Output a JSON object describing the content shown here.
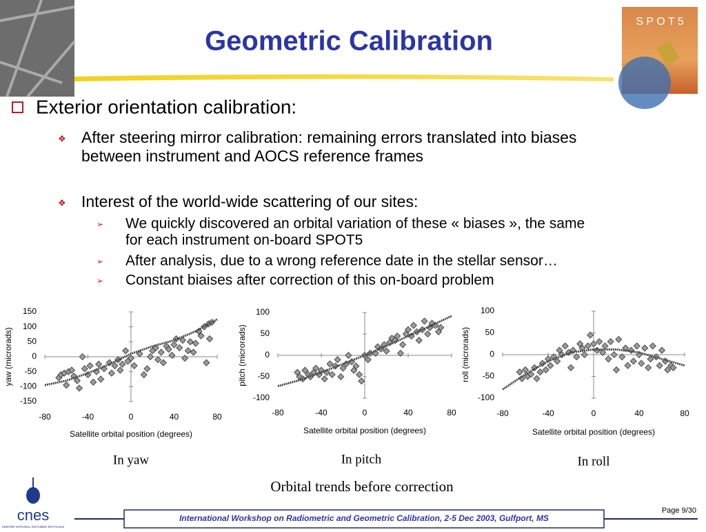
{
  "header": {
    "title": "Geometric Calibration",
    "logo_text": "S P O T 5"
  },
  "content": {
    "heading": "Exterior orientation calibration:",
    "items": [
      {
        "text": [
          "After steering mirror calibration: remaining errors translated into biases",
          "between instrument and AOCS reference frames"
        ]
      },
      {
        "text": [
          "Interest of the world-wide scattering of our sites:"
        ],
        "sub": [
          [
            "We quickly discovered an orbital variation of these « biases », the same",
            "for each instrument on-board SPOT5"
          ],
          [
            "After analysis, due to a wrong reference date in the stellar sensor…"
          ],
          [
            "Constant biaises after correction of this on-board problem"
          ]
        ]
      }
    ]
  },
  "chart_data": [
    {
      "type": "scatter",
      "y_label": "yaw (microrads)",
      "x_label": "Satellite orbital position (degrees)",
      "caption": "In yaw",
      "xlim": [
        -80,
        80
      ],
      "xticks": [
        -80,
        -40,
        0,
        40,
        80
      ],
      "ylim": [
        -150,
        150
      ],
      "yticks": [
        -150,
        -100,
        -50,
        0,
        50,
        100,
        150
      ],
      "color": "#9a9a9a",
      "x": [
        -67,
        -65,
        -62,
        -60,
        -58,
        -55,
        -53,
        -50,
        -48,
        -45,
        -43,
        -40,
        -38,
        -35,
        -32,
        -30,
        -28,
        -25,
        -20,
        -18,
        -15,
        -12,
        -10,
        -8,
        -5,
        -3,
        0,
        3,
        8,
        12,
        15,
        18,
        20,
        23,
        25,
        28,
        30,
        33,
        35,
        38,
        40,
        42,
        45,
        48,
        50,
        53,
        55,
        58,
        60,
        63,
        65,
        68,
        70,
        72,
        75,
        73
      ],
      "values": [
        -70,
        -60,
        -55,
        -95,
        -50,
        -45,
        -65,
        -80,
        -105,
        0,
        -40,
        -60,
        -30,
        -85,
        -50,
        -25,
        -75,
        -40,
        -20,
        -55,
        -30,
        -10,
        -45,
        -25,
        20,
        -15,
        -5,
        -30,
        10,
        -60,
        -40,
        0,
        20,
        30,
        -10,
        15,
        -20,
        35,
        25,
        5,
        40,
        60,
        30,
        55,
        -5,
        20,
        50,
        15,
        45,
        85,
        70,
        100,
        -20,
        110,
        115,
        60
      ],
      "trend": {
        "x": [
          -80,
          -60,
          -40,
          -20,
          0,
          20,
          40,
          60,
          80
        ],
        "values": [
          -95,
          -80,
          -55,
          -25,
          10,
          35,
          55,
          85,
          125
        ]
      }
    },
    {
      "type": "scatter",
      "y_label": "pitch (microrads)",
      "x_label": "Satellite orbital position (degrees)",
      "caption": "In pitch",
      "xlim": [
        -80,
        80
      ],
      "xticks": [
        -80,
        -40,
        0,
        40,
        80
      ],
      "ylim": [
        -100,
        100
      ],
      "yticks": [
        -100,
        -50,
        0,
        50,
        100
      ],
      "color": "#9a9a9a",
      "x": [
        -62,
        -60,
        -57,
        -55,
        -52,
        -50,
        -47,
        -45,
        -42,
        -40,
        -37,
        -35,
        -32,
        -30,
        -27,
        -25,
        -22,
        -20,
        -17,
        -15,
        -12,
        -10,
        -8,
        -5,
        -3,
        0,
        3,
        5,
        10,
        12,
        15,
        18,
        20,
        23,
        25,
        28,
        30,
        33,
        35,
        38,
        40,
        43,
        45,
        48,
        50,
        53,
        55,
        58,
        60,
        62,
        65,
        68,
        70
      ],
      "values": [
        -40,
        -50,
        -55,
        -35,
        -45,
        -50,
        -40,
        -30,
        -45,
        -35,
        -55,
        -40,
        -20,
        -45,
        -25,
        -10,
        -50,
        -30,
        -20,
        0,
        -15,
        -35,
        -25,
        -45,
        -60,
        0,
        -10,
        5,
        5,
        20,
        15,
        25,
        10,
        30,
        40,
        35,
        45,
        5,
        25,
        50,
        60,
        45,
        70,
        55,
        35,
        60,
        80,
        50,
        65,
        75,
        70,
        55,
        65
      ],
      "trend": {
        "x": [
          -80,
          -60,
          -40,
          -20,
          0,
          20,
          40,
          60,
          80
        ],
        "values": [
          -72,
          -58,
          -40,
          -20,
          0,
          22,
          45,
          68,
          92
        ]
      }
    },
    {
      "type": "scatter",
      "y_label": "roll (microrads)",
      "x_label": "Satellite orbital position (degrees)",
      "caption": "In roll",
      "xlim": [
        -80,
        80
      ],
      "xticks": [
        -80,
        -40,
        0,
        40,
        80
      ],
      "ylim": [
        -100,
        100
      ],
      "yticks": [
        -100,
        -50,
        0,
        50,
        100
      ],
      "color": "#9a9a9a",
      "x": [
        -65,
        -63,
        -60,
        -58,
        -55,
        -52,
        -50,
        -47,
        -45,
        -42,
        -40,
        -38,
        -35,
        -32,
        -30,
        -28,
        -25,
        -22,
        -20,
        -18,
        -15,
        -12,
        -10,
        -8,
        -5,
        -3,
        0,
        3,
        5,
        8,
        10,
        13,
        15,
        18,
        20,
        22,
        25,
        28,
        30,
        33,
        35,
        38,
        40,
        42,
        45,
        48,
        50,
        52,
        55,
        58,
        60,
        63,
        65,
        68,
        70
      ],
      "values": [
        -40,
        -55,
        -35,
        -50,
        -45,
        -30,
        -55,
        -40,
        -20,
        -35,
        -10,
        -25,
        -5,
        -15,
        10,
        0,
        20,
        5,
        -30,
        10,
        -5,
        25,
        15,
        0,
        20,
        45,
        25,
        10,
        30,
        5,
        20,
        -10,
        30,
        0,
        -35,
        35,
        -5,
        15,
        -25,
        10,
        -15,
        20,
        0,
        -20,
        15,
        -30,
        -10,
        20,
        -5,
        -25,
        10,
        -15,
        -35,
        -25,
        -30
      ],
      "trend": {
        "x": [
          -80,
          -60,
          -40,
          -20,
          0,
          20,
          40,
          60,
          80
        ],
        "values": [
          -80,
          -45,
          -15,
          5,
          12,
          12,
          5,
          -10,
          -25
        ]
      }
    }
  ],
  "figure_caption": "Orbital trends before correction",
  "footer": {
    "text": "International Workshop on Radiometric and Geometric Calibration, 2-5 Dec 2003, Gulfport, MS",
    "page": "Page 9/30",
    "logo": "cnes",
    "logo_subtitle": "CENTRE NATIONAL D'ETUDES SPATIALES"
  }
}
